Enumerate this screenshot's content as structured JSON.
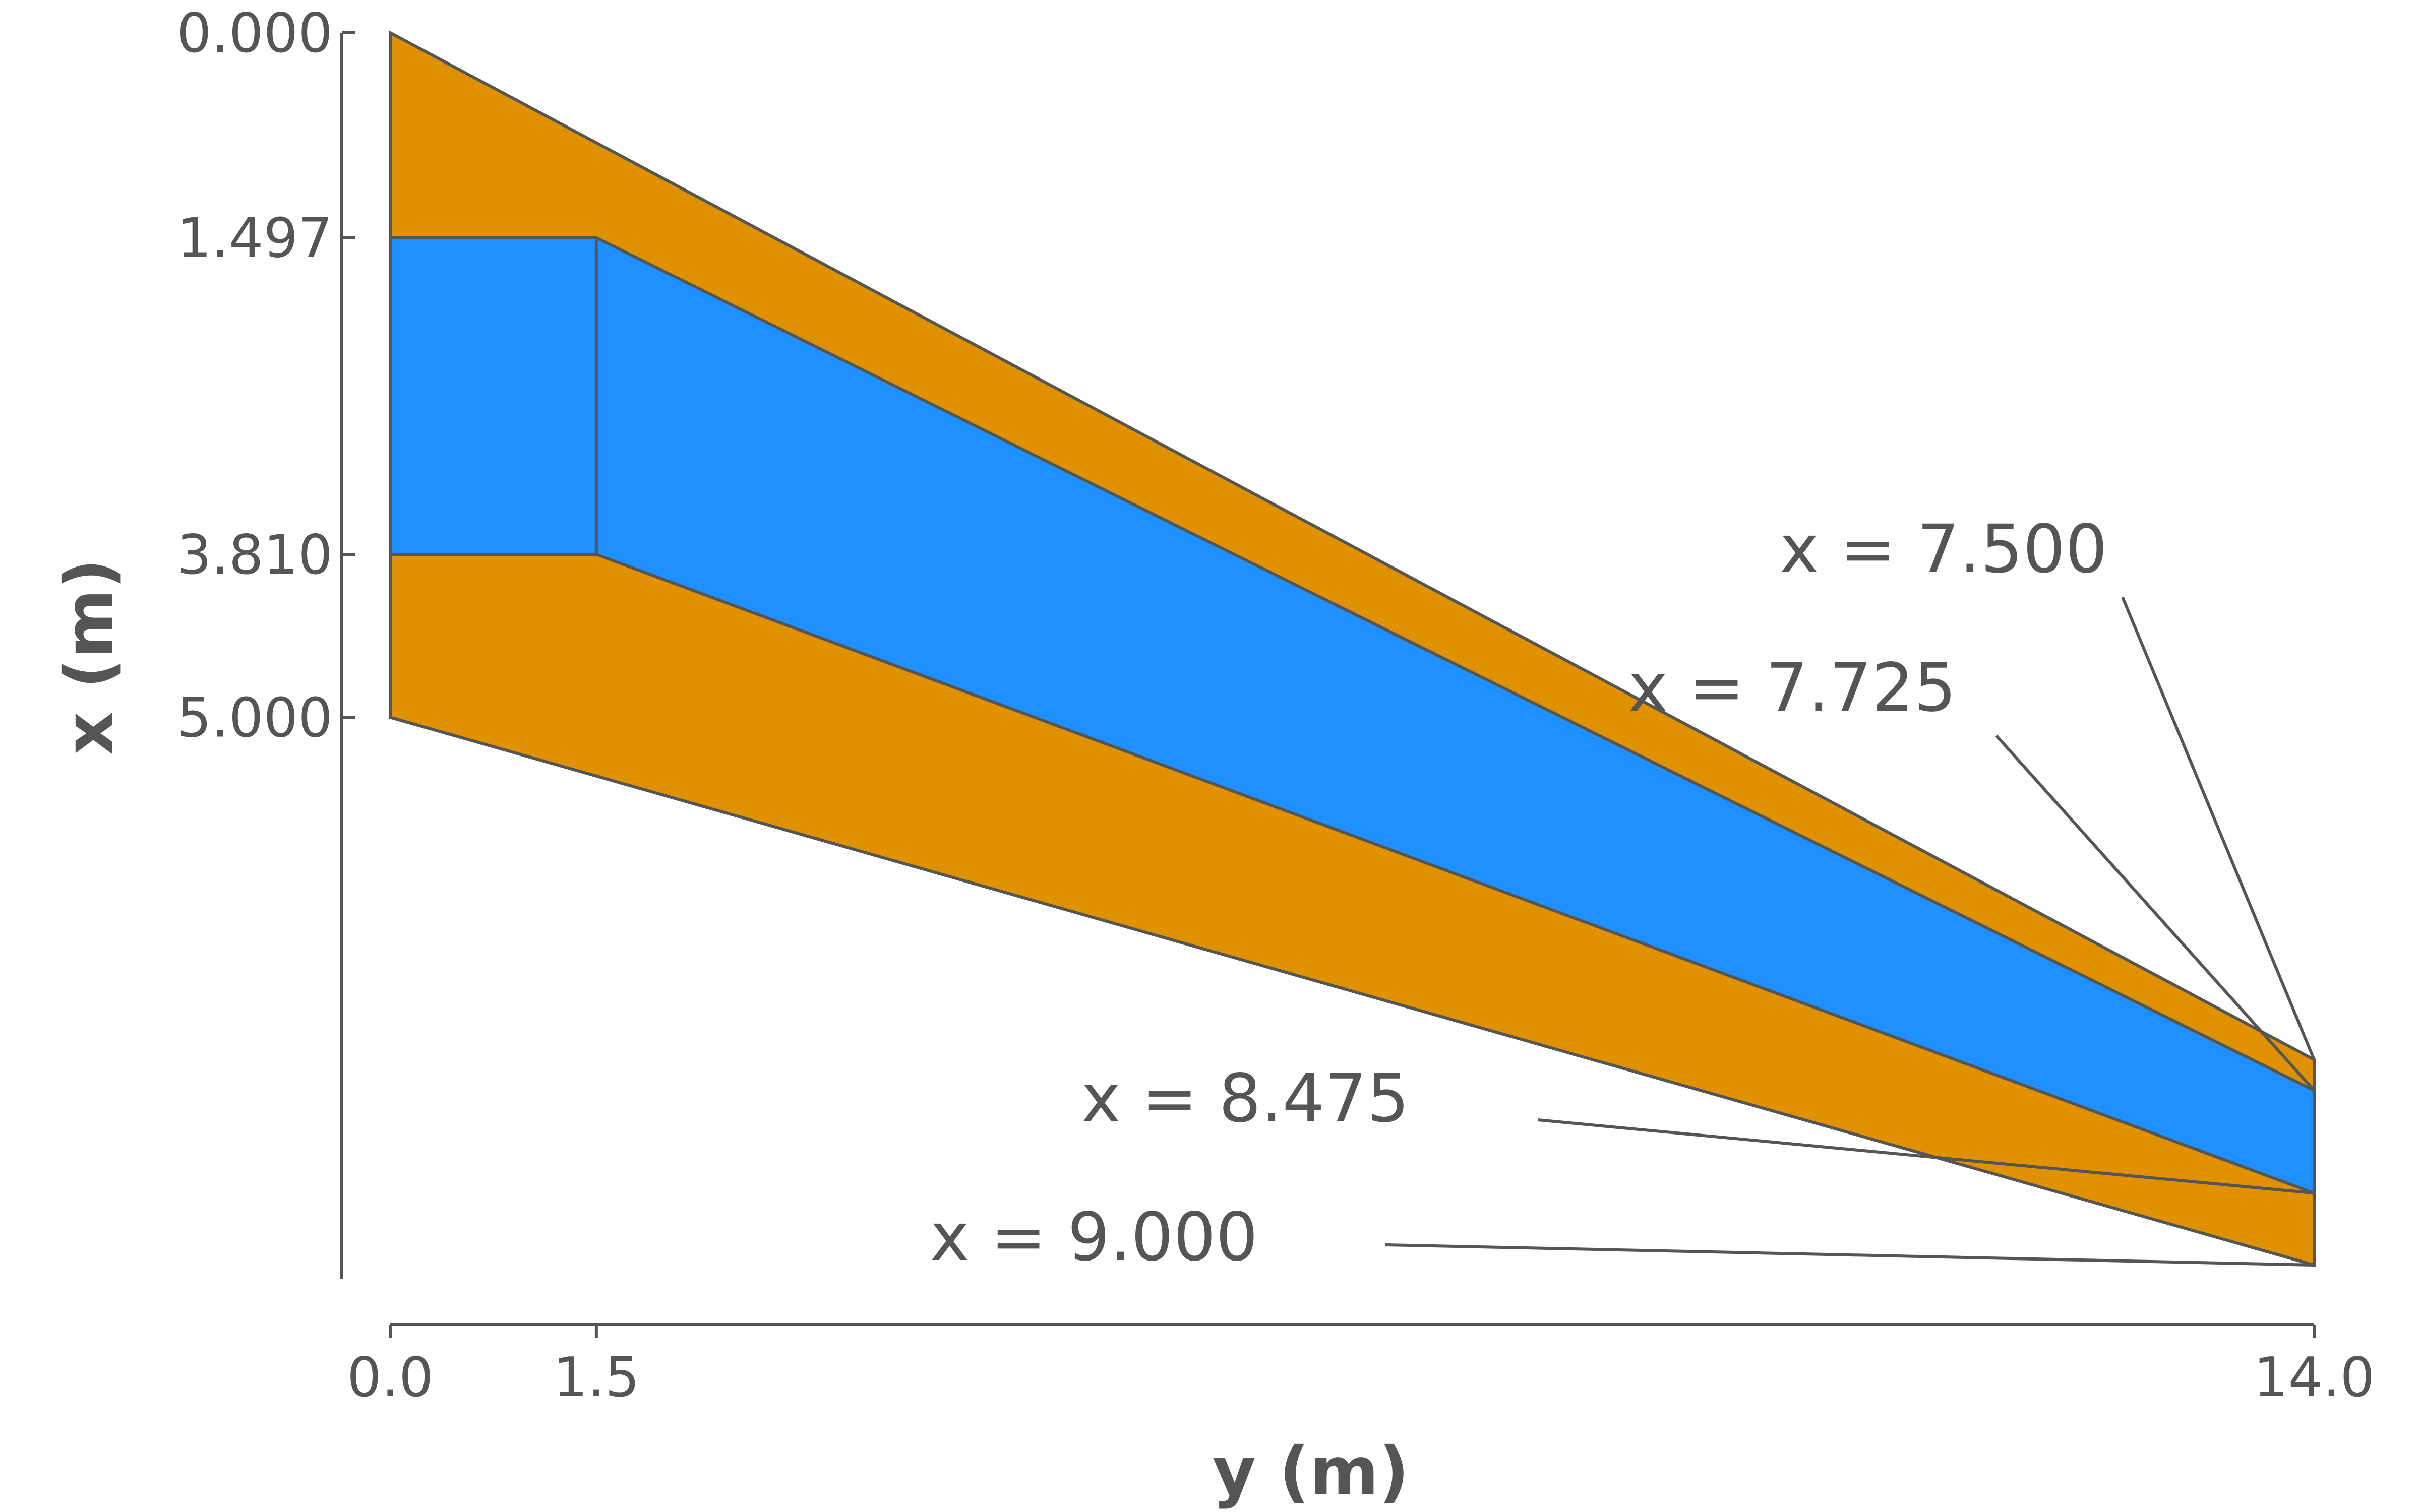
{
  "colors": {
    "outer_region": "#E09100",
    "inner_region": "#1E90FF",
    "outline": "#555555"
  },
  "axes": {
    "x_title": "y (m)",
    "y_title": "x (m)",
    "x_ticks": [
      {
        "value": 0.0,
        "label": "0.0"
      },
      {
        "value": 1.5,
        "label": "1.5"
      },
      {
        "value": 14.0,
        "label": "14.0"
      }
    ],
    "y_ticks": [
      {
        "value": 0.0,
        "label": "0.000"
      },
      {
        "value": 1.497,
        "label": "1.497"
      },
      {
        "value": 3.81,
        "label": "3.810"
      },
      {
        "value": 5.0,
        "label": "5.000"
      }
    ],
    "x_range": [
      0,
      14
    ],
    "y_range": [
      0,
      9
    ]
  },
  "shapes": {
    "outer_region": [
      [
        0,
        0
      ],
      [
        14,
        7.5
      ],
      [
        14,
        9.0
      ],
      [
        0,
        5.0
      ]
    ],
    "inner_region": [
      [
        0,
        1.497
      ],
      [
        1.5,
        1.497
      ],
      [
        14,
        7.725
      ],
      [
        14,
        8.475
      ],
      [
        1.5,
        3.81
      ],
      [
        0,
        3.81
      ]
    ]
  },
  "annotations": [
    {
      "text": "x = 7.500",
      "y": 14,
      "x": 7.5
    },
    {
      "text": "x = 7.725",
      "y": 14,
      "x": 7.725
    },
    {
      "text": "x = 8.475",
      "y": 14,
      "x": 8.475
    },
    {
      "text": "x = 9.000",
      "y": 14,
      "x": 9.0
    }
  ]
}
